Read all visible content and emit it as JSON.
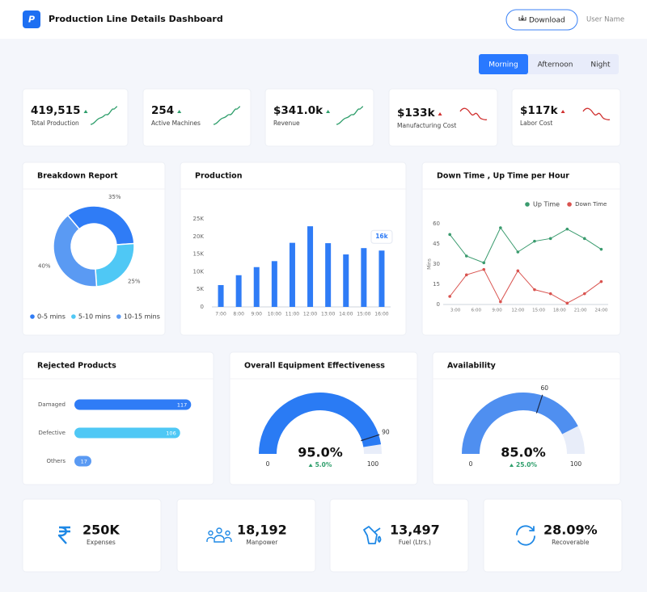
{
  "header": {
    "logo": "P",
    "title": "Production Line Details Dashboard",
    "download": "Download",
    "user": "User Name"
  },
  "shifts": {
    "options": [
      "Morning",
      "Afternoon",
      "Night"
    ],
    "active": "Morning"
  },
  "kpis": [
    {
      "value": "419,515",
      "label": "Total Production",
      "trend": "up"
    },
    {
      "value": "254",
      "label": "Active Machines",
      "trend": "up"
    },
    {
      "value": "$341.0k",
      "label": "Revenue",
      "trend": "up"
    },
    {
      "value": "$133k",
      "label": "Manufacturing Cost",
      "trend": "down"
    },
    {
      "value": "$117k",
      "label": "Labor Cost",
      "trend": "down"
    }
  ],
  "chart_data": [
    {
      "type": "pie",
      "title": "Breakdown Report",
      "categories": [
        "0-5 mins",
        "5-10 mins",
        "10-15 mins"
      ],
      "values": [
        35,
        25,
        40
      ],
      "value_labels": [
        "35%",
        "25%",
        "40%"
      ],
      "colors": [
        "#2f7cf6",
        "#4fc8f5",
        "#5a9af3"
      ]
    },
    {
      "type": "bar",
      "title": "Production",
      "categories": [
        "7:00",
        "8:00",
        "9:00",
        "10:00",
        "11:00",
        "12:00",
        "13:00",
        "14:00",
        "15:00",
        "16:00"
      ],
      "values": [
        6200,
        9000,
        11300,
        13000,
        18200,
        22900,
        18100,
        14900,
        16700,
        16000
      ],
      "value_labels": [
        null,
        null,
        null,
        null,
        null,
        null,
        null,
        null,
        null,
        "16k"
      ],
      "color": "#2f7cf6",
      "ylim": [
        0,
        25000
      ],
      "yticks": [
        0,
        {
          "value": 5000,
          "label": "5K"
        },
        {
          "value": 10000,
          "label": "10K"
        },
        {
          "value": 15000,
          "label": "15K"
        },
        {
          "value": 20000,
          "label": "20K"
        },
        {
          "value": 25000,
          "label": "25K"
        }
      ]
    },
    {
      "type": "line",
      "title": "Down Time , Up Time per Hour",
      "ylabel": "Mins",
      "legend": "top",
      "x": [
        2.2,
        4.6,
        7.1,
        9.5,
        12,
        14.4,
        16.7,
        19.1,
        21.6,
        24
      ],
      "series": [
        {
          "name": "Up Time",
          "color": "#3a9b6e",
          "values": [
            52,
            36,
            31,
            57,
            39,
            47,
            49,
            56,
            49,
            41
          ]
        },
        {
          "name": "Down Time",
          "color": "#d9534f",
          "values": [
            6,
            22,
            26,
            2,
            25,
            11,
            8,
            1,
            8,
            17
          ]
        }
      ],
      "xlim": [
        1.25,
        25
      ],
      "xticks": [
        {
          "value": 3,
          "label": "3:00"
        },
        {
          "value": 6,
          "label": "6:00"
        },
        {
          "value": 9,
          "label": "9:00"
        },
        {
          "value": 12,
          "label": "12:00"
        },
        {
          "value": 15,
          "label": "15:00"
        },
        {
          "value": 18,
          "label": "18:00"
        },
        {
          "value": 21,
          "label": "21:00"
        },
        {
          "value": 24,
          "label": "24:00"
        }
      ],
      "ylim": [
        0,
        60
      ],
      "yticks": [
        0,
        15,
        30,
        45,
        60
      ]
    },
    {
      "type": "bar",
      "orientation": "horizontal",
      "title": "Rejected Products",
      "categories": [
        "Damaged",
        "Defective",
        "Others"
      ],
      "values": [
        117,
        106,
        17
      ],
      "colors": [
        "#2f7cf6",
        "#4fc8f5",
        "#5a9af3"
      ],
      "xlim": [
        0,
        120
      ]
    },
    {
      "type": "gauge",
      "title": "Overall Equipment Effectiveness",
      "value": 95,
      "value_label": "95.0%",
      "change": "5.0%",
      "min": 0,
      "max": 100,
      "marker": 90,
      "color": "#2a7bf4",
      "track_color": "#e8edf9"
    },
    {
      "type": "gauge",
      "title": "Availability",
      "value": 85,
      "value_label": "85.0%",
      "change": "25.0%",
      "min": 0,
      "max": 100,
      "marker": 60,
      "color": "#4f8ff0",
      "track_color": "#e8edf9"
    }
  ],
  "summary": [
    {
      "value": "250K",
      "label": "Expenses"
    },
    {
      "value": "18,192",
      "label": "Manpower"
    },
    {
      "value": "13,497",
      "label": "Fuel (Ltrs.)"
    },
    {
      "value": "28.09%",
      "label": "Recoverable"
    }
  ]
}
